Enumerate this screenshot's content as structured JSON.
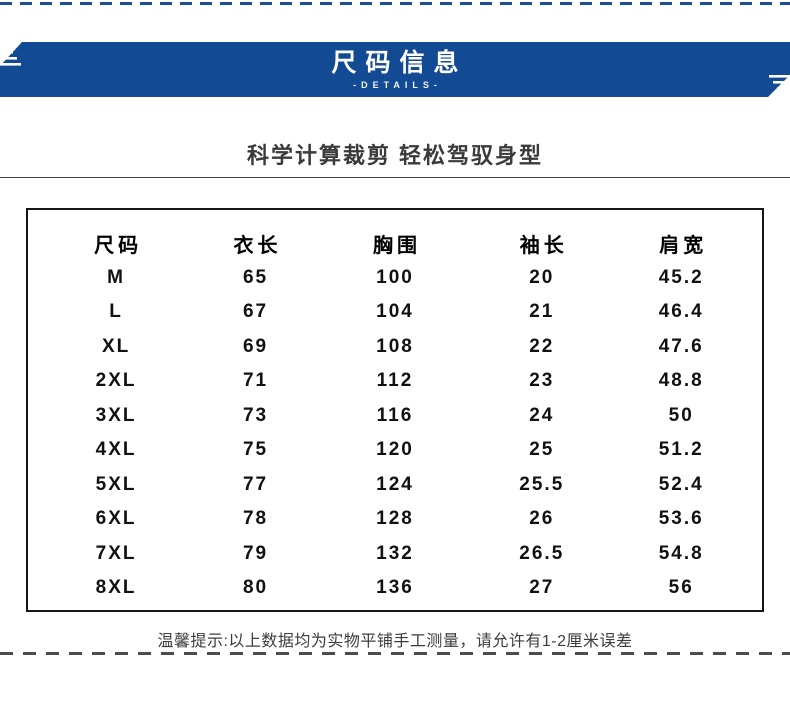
{
  "banner": {
    "title": "尺码信息",
    "subtitle": "-DETAILS-",
    "bg_color": "#134a94",
    "text_color": "#ffffff"
  },
  "tagline": "科学计算裁剪 轻松驾驭身型",
  "table": {
    "headers": [
      "尺码",
      "衣长",
      "胸围",
      "袖长",
      "肩宽"
    ],
    "rows": [
      [
        "M",
        "65",
        "100",
        "20",
        "45.2"
      ],
      [
        "L",
        "67",
        "104",
        "21",
        "46.4"
      ],
      [
        "XL",
        "69",
        "108",
        "22",
        "47.6"
      ],
      [
        "2XL",
        "71",
        "112",
        "23",
        "48.8"
      ],
      [
        "3XL",
        "73",
        "116",
        "24",
        "50"
      ],
      [
        "4XL",
        "75",
        "120",
        "25",
        "51.2"
      ],
      [
        "5XL",
        "77",
        "124",
        "25.5",
        "52.4"
      ],
      [
        "6XL",
        "78",
        "128",
        "26",
        "53.6"
      ],
      [
        "7XL",
        "79",
        "132",
        "26.5",
        "54.8"
      ],
      [
        "8XL",
        "80",
        "136",
        "27",
        "56"
      ]
    ]
  },
  "note": "温馨提示:以上数据均为实物平铺手工测量，请允许有1-2厘米误差",
  "colors": {
    "top_dash": "#1e4c97",
    "bottom_dash": "#4c4c4c",
    "table_border": "#161616"
  }
}
